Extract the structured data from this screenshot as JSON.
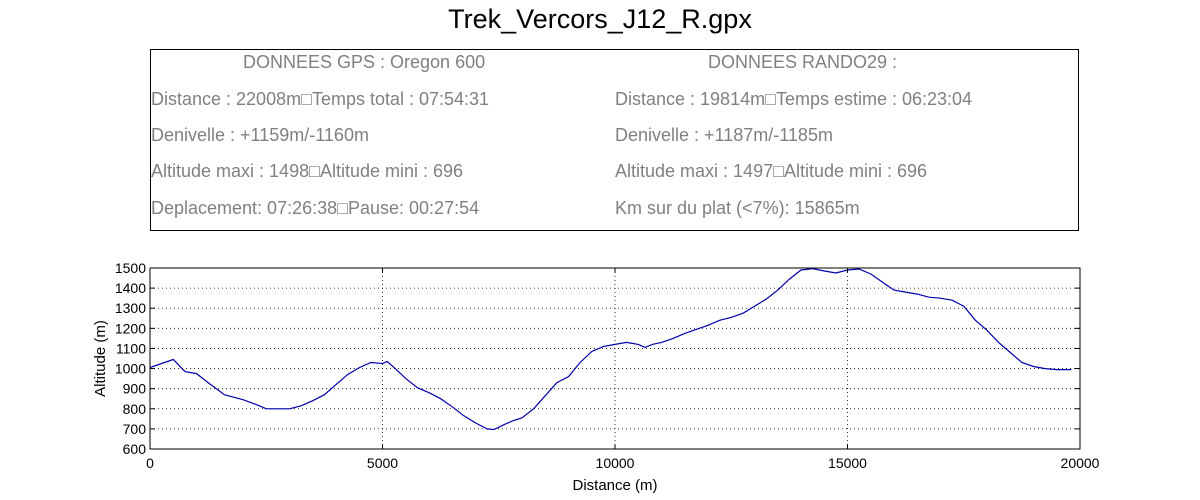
{
  "header": {
    "title": "Trek_Vercors_J12_R.gpx"
  },
  "info": {
    "gps": {
      "heading": "DONNEES GPS :  Oregon 600",
      "line1": "Distance : 22008m□Temps total : 07:54:31",
      "line2": "Denivelle : +1159m/-1160m",
      "line3": "Altitude maxi : 1498□Altitude mini : 696",
      "line4": "Deplacement: 07:26:38□Pause: 00:27:54"
    },
    "rando": {
      "heading": "DONNEES RANDO29  :",
      "line1": "Distance : 19814m□Temps estime : 06:23:04",
      "line2": "Denivelle : +1187m/-1185m",
      "line3": "Altitude maxi : 1497□Altitude mini : 696",
      "line4": "Km sur du plat  (<7%): 15865m"
    }
  },
  "chart_data": {
    "type": "line",
    "xlabel": "Distance (m)",
    "ylabel": "Altitude (m)",
    "xlim": [
      0,
      20000
    ],
    "ylim": [
      600,
      1500
    ],
    "xticks": [
      0,
      5000,
      10000,
      15000,
      20000
    ],
    "yticks": [
      600,
      700,
      800,
      900,
      1000,
      1100,
      1200,
      1300,
      1400,
      1500
    ],
    "grid": true,
    "line_color": "#0000aa",
    "series": [
      {
        "x": [
          0,
          250,
          500,
          750,
          1000,
          1250,
          1600,
          2000,
          2300,
          2500,
          2750,
          3000,
          3250,
          3500,
          3750,
          4000,
          4250,
          4500,
          4750,
          5000,
          5100,
          5250,
          5500,
          5750,
          6000,
          6250,
          6500,
          6750,
          7000,
          7250,
          7400,
          7600,
          7800,
          8000,
          8250,
          8500,
          8750,
          9000,
          9250,
          9500,
          9750,
          10000,
          10250,
          10500,
          10650,
          10800,
          11000,
          11250,
          11500,
          11750,
          12000,
          12250,
          12500,
          12750,
          13000,
          13250,
          13500,
          13750,
          14000,
          14250,
          14500,
          14750,
          15000,
          15250,
          15500,
          15750,
          16000,
          16250,
          16500,
          16750,
          17000,
          17250,
          17500,
          17750,
          18000,
          18250,
          18500,
          18750,
          19000,
          19250,
          19500,
          19814
        ],
        "y": [
          1005,
          1025,
          1045,
          985,
          975,
          930,
          870,
          845,
          820,
          800,
          800,
          800,
          815,
          840,
          870,
          920,
          970,
          1005,
          1030,
          1025,
          1035,
          1005,
          950,
          905,
          880,
          850,
          810,
          765,
          730,
          700,
          697,
          720,
          740,
          755,
          800,
          865,
          930,
          960,
          1030,
          1085,
          1110,
          1120,
          1130,
          1120,
          1105,
          1120,
          1130,
          1150,
          1175,
          1195,
          1215,
          1240,
          1255,
          1275,
          1310,
          1345,
          1390,
          1445,
          1490,
          1497,
          1485,
          1475,
          1490,
          1495,
          1470,
          1430,
          1390,
          1380,
          1370,
          1355,
          1350,
          1340,
          1310,
          1240,
          1190,
          1130,
          1080,
          1030,
          1010,
          1000,
          995,
          995
        ]
      }
    ]
  }
}
